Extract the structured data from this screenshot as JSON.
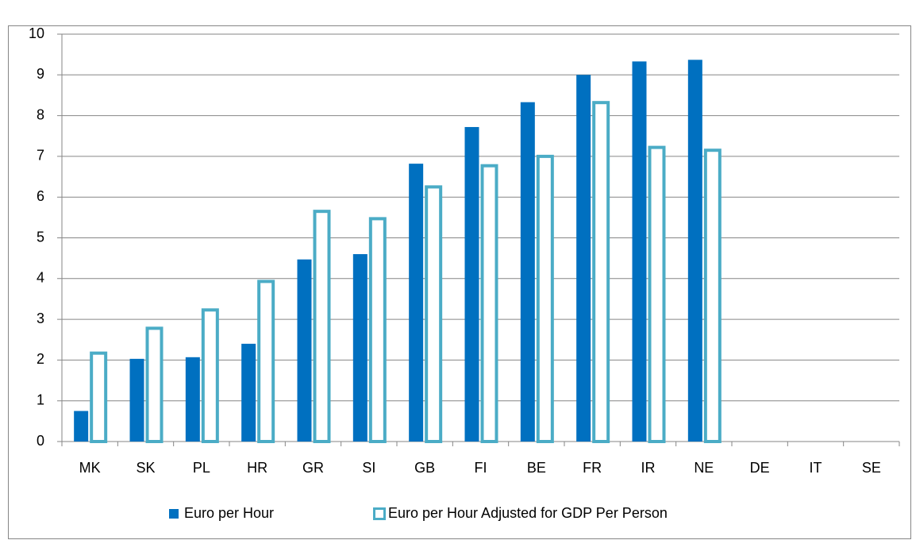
{
  "chart_data": {
    "type": "bar",
    "categories": [
      "MK",
      "SK",
      "PL",
      "HR",
      "GR",
      "SI",
      "GB",
      "FI",
      "BE",
      "FR",
      "IR",
      "NE",
      "DE",
      "IT",
      "SE"
    ],
    "series": [
      {
        "name": "Euro per Hour",
        "color": "#0070c0",
        "style": "filled",
        "values": [
          0.75,
          2.03,
          2.07,
          2.4,
          4.47,
          4.6,
          6.82,
          7.72,
          8.33,
          9.0,
          9.33,
          9.37,
          null,
          null,
          null
        ]
      },
      {
        "name": "Euro per Hour Adjusted for GDP Per Person",
        "color": "#4bacc6",
        "style": "outline",
        "values": [
          2.17,
          2.78,
          3.23,
          3.93,
          5.65,
          5.47,
          6.25,
          6.77,
          7.0,
          8.32,
          7.22,
          7.15,
          null,
          null,
          null
        ]
      }
    ],
    "ylim": [
      0,
      10
    ],
    "yticks": [
      0,
      1,
      2,
      3,
      4,
      5,
      6,
      7,
      8,
      9,
      10
    ],
    "grid": true,
    "legend": "bottom"
  }
}
